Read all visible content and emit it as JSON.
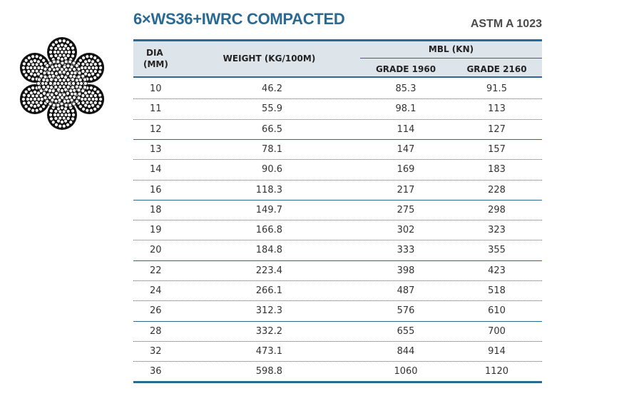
{
  "header": {
    "title": "6×WS36+IWRC COMPACTED",
    "standard": "ASTM A 1023"
  },
  "table": {
    "columns": {
      "dia": [
        "DIA",
        "(MM)"
      ],
      "weight": "WEIGHT (KG/100M)",
      "mbl": "MBL (KN)",
      "grade_1960": "GRADE 1960",
      "grade_2160": "GRADE 2160"
    },
    "rows": [
      [
        "10",
        "46.2",
        "85.3",
        "91.5"
      ],
      [
        "11",
        "55.9",
        "98.1",
        "113"
      ],
      [
        "12",
        "66.5",
        "114",
        "127"
      ],
      [
        "13",
        "78.1",
        "147",
        "157"
      ],
      [
        "14",
        "90.6",
        "169",
        "183"
      ],
      [
        "16",
        "118.3",
        "217",
        "228"
      ],
      [
        "18",
        "149.7",
        "275",
        "298"
      ],
      [
        "19",
        "166.8",
        "302",
        "323"
      ],
      [
        "20",
        "184.8",
        "333",
        "355"
      ],
      [
        "22",
        "223.4",
        "398",
        "423"
      ],
      [
        "24",
        "266.1",
        "487",
        "518"
      ],
      [
        "26",
        "312.3",
        "576",
        "610"
      ],
      [
        "28",
        "332.2",
        "655",
        "700"
      ],
      [
        "32",
        "473.1",
        "844",
        "914"
      ],
      [
        "36",
        "598.8",
        "1060",
        "1120"
      ]
    ]
  }
}
